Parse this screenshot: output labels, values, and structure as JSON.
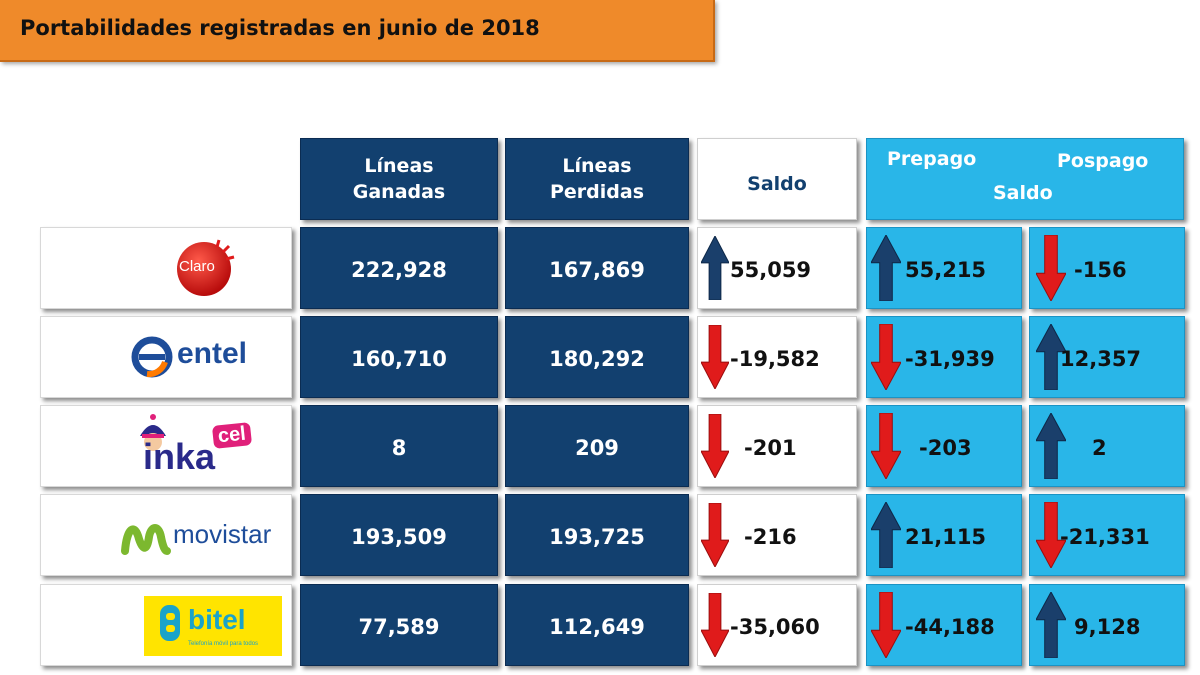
{
  "title": "Portabilidades registradas en junio de 2018",
  "headers": {
    "ganadas": [
      "Líneas",
      "Ganadas"
    ],
    "perdidas": [
      "Líneas",
      "Perdidas"
    ],
    "saldo": "Saldo",
    "prepago": "Prepago",
    "pospago": "Pospago",
    "saldo2": "Saldo"
  },
  "rows": [
    {
      "operator": "Claro",
      "logo_text": "Claro",
      "ganadas": "222,928",
      "perdidas": "167,869",
      "saldo": "55,059",
      "saldo_dir": "up",
      "prepago": "55,215",
      "prepago_dir": "up",
      "pospago": "-156",
      "pospago_dir": "down"
    },
    {
      "operator": "entel",
      "logo_text": "entel",
      "ganadas": "160,710",
      "perdidas": "180,292",
      "saldo": "-19,582",
      "saldo_dir": "down",
      "prepago": "-31,939",
      "prepago_dir": "down",
      "pospago": "12,357",
      "pospago_dir": "up"
    },
    {
      "operator": "inkacel",
      "logo_text": "inka",
      "logo_badge": "cel",
      "ganadas": "8",
      "perdidas": "209",
      "saldo": "-201",
      "saldo_dir": "down",
      "prepago": "-203",
      "prepago_dir": "down",
      "pospago": "2",
      "pospago_dir": "up"
    },
    {
      "operator": "movistar",
      "logo_text": "movistar",
      "ganadas": "193,509",
      "perdidas": "193,725",
      "saldo": "-216",
      "saldo_dir": "down",
      "prepago": "21,115",
      "prepago_dir": "up",
      "pospago": "-21,331",
      "pospago_dir": "down"
    },
    {
      "operator": "bitel",
      "logo_text": "bitel",
      "logo_tagline": "Telefonía móvil para todos",
      "ganadas": "77,589",
      "perdidas": "112,649",
      "saldo": "-35,060",
      "saldo_dir": "down",
      "prepago": "-44,188",
      "prepago_dir": "down",
      "pospago": "9,128",
      "pospago_dir": "up"
    }
  ],
  "colors": {
    "navy": "#12406f",
    "cyan": "#29b6e8",
    "orange": "#ef8a2a",
    "up_arrow": "#1a3f6b",
    "down_arrow": "#e01b1b"
  }
}
